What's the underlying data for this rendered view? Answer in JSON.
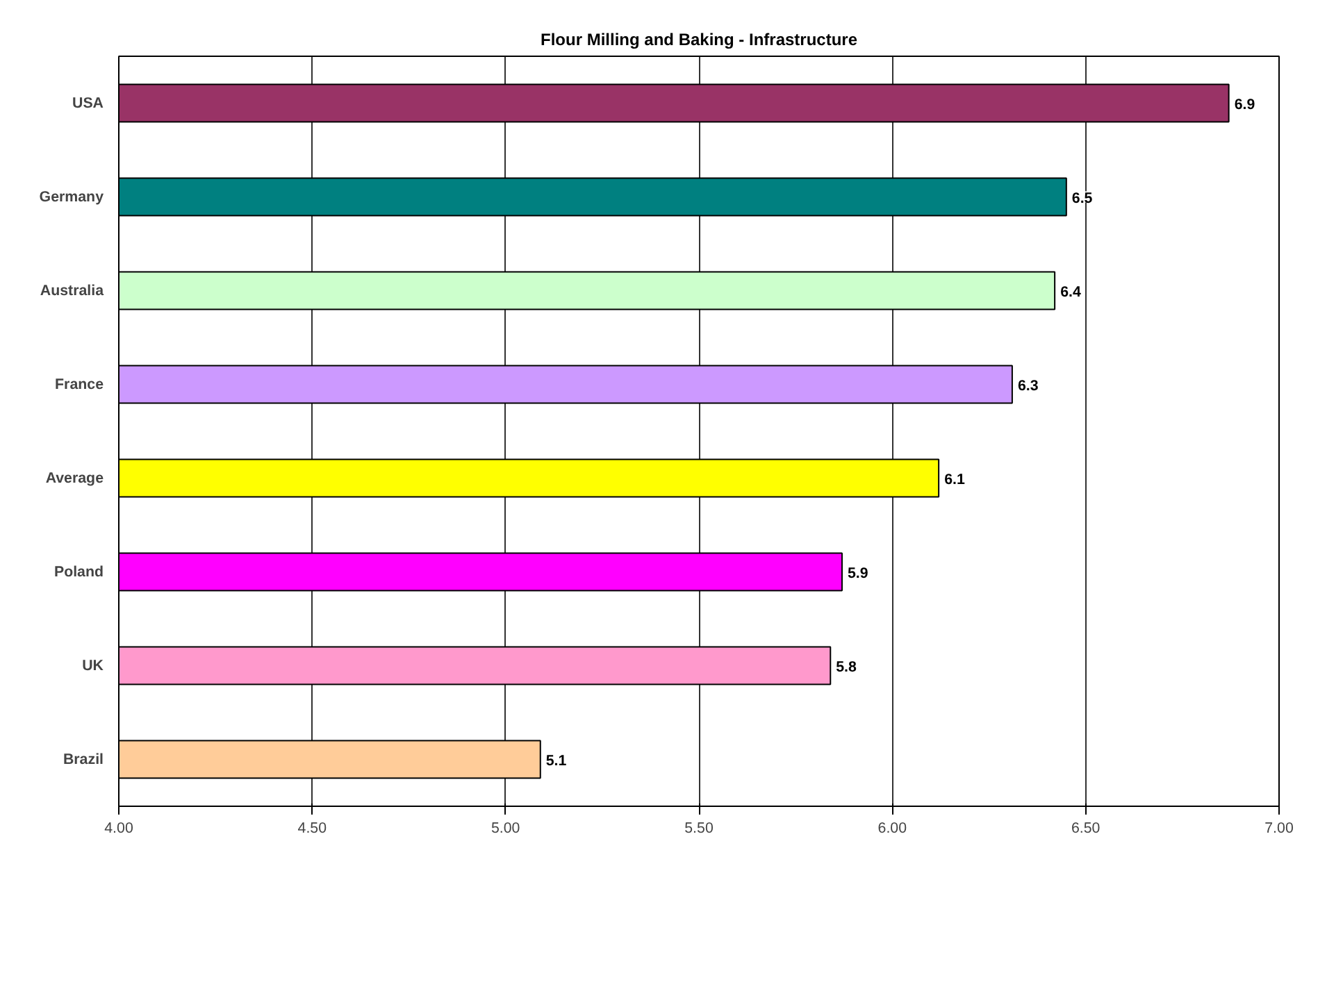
{
  "chart_data": {
    "type": "bar",
    "orientation": "horizontal",
    "title": "Flour Milling and Baking - Infrastructure",
    "categories": [
      "USA",
      "Germany",
      "Australia",
      "France",
      "Average",
      "Poland",
      "UK",
      "Brazil"
    ],
    "values": [
      6.87,
      6.45,
      6.42,
      6.31,
      6.12,
      5.87,
      5.84,
      5.09
    ],
    "colors": [
      "#993366",
      "#008080",
      "#ccffcc",
      "#cc99ff",
      "#ffff00",
      "#ff00ff",
      "#ff99cc",
      "#ffcc99"
    ],
    "value_labels": [
      "6.9",
      "6.5",
      "6.4",
      "6.3",
      "6.1",
      "5.9",
      "5.8",
      "5.1"
    ],
    "xlim": [
      4,
      7
    ],
    "xticks": [
      {
        "value": 4,
        "label": "4.00"
      },
      {
        "value": 4.5,
        "label": "4.50"
      },
      {
        "value": 5,
        "label": "5.00"
      },
      {
        "value": 5.5,
        "label": "5.50"
      },
      {
        "value": 6,
        "label": "6.00"
      },
      {
        "value": 6.5,
        "label": "6.50"
      },
      {
        "value": 7,
        "label": "7.00"
      }
    ],
    "grid": "x"
  }
}
